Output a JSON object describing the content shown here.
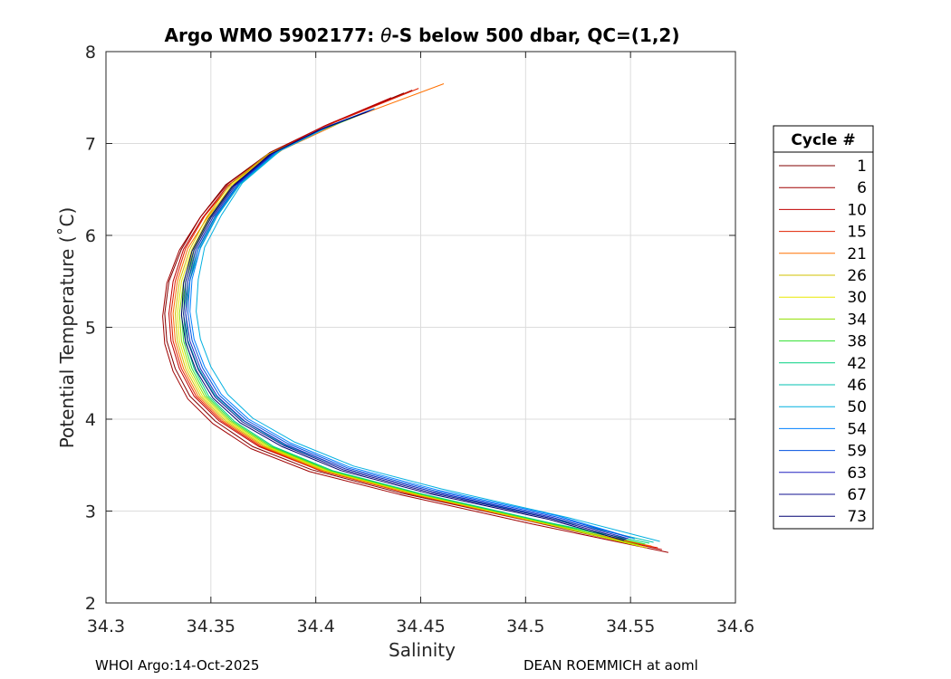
{
  "footer": {
    "left": "WHOI Argo:14-Oct-2025",
    "right": "DEAN ROEMMICH at aoml"
  },
  "chart_data": {
    "type": "line",
    "title": "Argo WMO 5902177: θ-S below 500 dbar,  QC=(1,2)",
    "title_prefix": "Argo WMO 5902177: ",
    "title_symbol": "θ",
    "title_suffix": "-S below 500 dbar,  QC=(1,2)",
    "xlabel": "Salinity",
    "ylabel": "Potential Temperature (˚C)",
    "xlim": [
      34.3,
      34.6
    ],
    "ylim": [
      2,
      8
    ],
    "xticks": [
      34.3,
      34.35,
      34.4,
      34.45,
      34.5,
      34.55,
      34.6
    ],
    "xtick_labels": [
      "34.3",
      "34.35",
      "34.4",
      "34.45",
      "34.5",
      "34.55",
      "34.6"
    ],
    "yticks": [
      2,
      3,
      4,
      5,
      6,
      7,
      8
    ],
    "ytick_labels": [
      "2",
      "3",
      "4",
      "5",
      "6",
      "7",
      "8"
    ],
    "grid": true,
    "legend_title": "Cycle #",
    "legend_position": "outside-right",
    "series": [
      {
        "name": "1",
        "color": "#800000",
        "x": [
          34.442,
          34.405,
          34.378,
          34.357,
          34.345,
          34.336,
          34.33,
          34.328,
          34.329,
          34.333,
          34.34,
          34.352,
          34.37,
          34.398,
          34.44,
          34.5,
          34.553
        ],
        "y": [
          7.55,
          7.2,
          6.9,
          6.55,
          6.2,
          5.85,
          5.5,
          5.15,
          4.85,
          4.55,
          4.25,
          3.98,
          3.7,
          3.45,
          3.2,
          2.9,
          2.63
        ]
      },
      {
        "name": "6",
        "color": "#a00000",
        "x": [
          34.446,
          34.407,
          34.379,
          34.358,
          34.345,
          34.335,
          34.329,
          34.327,
          34.328,
          34.332,
          34.339,
          34.351,
          34.369,
          34.397,
          34.44,
          34.503,
          34.568
        ],
        "y": [
          7.58,
          7.22,
          6.91,
          6.56,
          6.2,
          5.84,
          5.48,
          5.12,
          4.82,
          4.52,
          4.22,
          3.95,
          3.68,
          3.43,
          3.18,
          2.86,
          2.55
        ]
      },
      {
        "name": "10",
        "color": "#c00000",
        "x": [
          34.436,
          34.404,
          34.378,
          34.358,
          34.346,
          34.337,
          34.332,
          34.33,
          34.331,
          34.335,
          34.342,
          34.354,
          34.373,
          34.402,
          34.445,
          34.505,
          34.565
        ],
        "y": [
          7.5,
          7.19,
          6.89,
          6.54,
          6.19,
          5.85,
          5.5,
          5.15,
          4.85,
          4.55,
          4.25,
          3.98,
          3.7,
          3.44,
          3.19,
          2.88,
          2.58
        ]
      },
      {
        "name": "15",
        "color": "#e02000",
        "x": [
          34.449,
          34.409,
          34.381,
          34.36,
          34.347,
          34.338,
          34.333,
          34.331,
          34.332,
          34.336,
          34.343,
          34.355,
          34.374,
          34.402,
          34.444,
          34.505,
          34.563
        ],
        "y": [
          7.6,
          7.23,
          6.92,
          6.57,
          6.21,
          5.86,
          5.5,
          5.15,
          4.85,
          4.55,
          4.25,
          3.98,
          3.7,
          3.44,
          3.19,
          2.88,
          2.6
        ]
      },
      {
        "name": "21",
        "color": "#ff7000",
        "x": [
          34.461,
          34.414,
          34.384,
          34.362,
          34.349,
          34.339,
          34.334,
          34.332,
          34.333,
          34.337,
          34.344,
          34.356,
          34.375,
          34.403,
          34.445,
          34.505,
          34.56
        ],
        "y": [
          7.65,
          7.25,
          6.93,
          6.58,
          6.22,
          5.86,
          5.5,
          5.15,
          4.85,
          4.55,
          4.25,
          3.98,
          3.7,
          3.44,
          3.19,
          2.88,
          2.62
        ]
      },
      {
        "name": "26",
        "color": "#d0c000",
        "x": [
          34.422,
          34.4,
          34.377,
          34.359,
          34.348,
          34.34,
          34.335,
          34.333,
          34.334,
          34.338,
          34.345,
          34.357,
          34.376,
          34.404,
          34.446,
          34.506,
          34.558
        ],
        "y": [
          7.32,
          7.12,
          6.88,
          6.55,
          6.2,
          5.85,
          5.5,
          5.15,
          4.85,
          4.55,
          4.25,
          3.98,
          3.7,
          3.44,
          3.19,
          2.88,
          2.6
        ]
      },
      {
        "name": "30",
        "color": "#e8e800",
        "x": [
          34.423,
          34.401,
          34.378,
          34.36,
          34.349,
          34.341,
          34.336,
          34.334,
          34.335,
          34.339,
          34.346,
          34.358,
          34.377,
          34.405,
          34.447,
          34.507,
          34.556
        ],
        "y": [
          7.33,
          7.13,
          6.88,
          6.55,
          6.2,
          5.85,
          5.5,
          5.15,
          4.85,
          4.55,
          4.25,
          3.98,
          3.7,
          3.44,
          3.19,
          2.88,
          2.61
        ]
      },
      {
        "name": "34",
        "color": "#90e000",
        "x": [
          34.424,
          34.402,
          34.379,
          34.361,
          34.35,
          34.342,
          34.337,
          34.335,
          34.336,
          34.34,
          34.347,
          34.359,
          34.378,
          34.406,
          34.448,
          34.508,
          34.554
        ],
        "y": [
          7.34,
          7.14,
          6.89,
          6.55,
          6.2,
          5.85,
          5.5,
          5.15,
          4.85,
          4.55,
          4.25,
          3.98,
          3.7,
          3.44,
          3.19,
          2.88,
          2.63
        ]
      },
      {
        "name": "38",
        "color": "#30e030",
        "x": [
          34.425,
          34.403,
          34.38,
          34.362,
          34.351,
          34.343,
          34.338,
          34.336,
          34.337,
          34.341,
          34.348,
          34.36,
          34.379,
          34.407,
          34.449,
          34.509,
          34.557
        ],
        "y": [
          7.35,
          7.15,
          6.89,
          6.55,
          6.2,
          5.85,
          5.5,
          5.15,
          4.85,
          4.55,
          4.25,
          3.98,
          3.7,
          3.44,
          3.19,
          2.88,
          2.64
        ]
      },
      {
        "name": "42",
        "color": "#00d080",
        "x": [
          34.426,
          34.404,
          34.381,
          34.363,
          34.352,
          34.344,
          34.339,
          34.337,
          34.338,
          34.342,
          34.349,
          34.361,
          34.38,
          34.408,
          34.45,
          34.51,
          34.559
        ],
        "y": [
          7.36,
          7.16,
          6.9,
          6.55,
          6.2,
          5.85,
          5.5,
          5.15,
          4.85,
          4.55,
          4.25,
          3.98,
          3.7,
          3.44,
          3.19,
          2.88,
          2.65
        ]
      },
      {
        "name": "46",
        "color": "#00c0b0",
        "x": [
          34.427,
          34.405,
          34.382,
          34.364,
          34.353,
          34.345,
          34.34,
          34.338,
          34.339,
          34.344,
          34.352,
          34.365,
          34.385,
          34.414,
          34.456,
          34.516,
          34.561
        ],
        "y": [
          7.37,
          7.17,
          6.91,
          6.56,
          6.21,
          5.86,
          5.51,
          5.16,
          4.86,
          4.56,
          4.26,
          3.99,
          3.72,
          3.46,
          3.21,
          2.9,
          2.66
        ]
      },
      {
        "name": "50",
        "color": "#00b0e0",
        "x": [
          34.428,
          34.406,
          34.383,
          34.365,
          34.355,
          34.347,
          34.344,
          34.343,
          34.345,
          34.35,
          34.358,
          34.37,
          34.39,
          34.418,
          34.46,
          34.52,
          34.564
        ],
        "y": [
          7.38,
          7.18,
          6.92,
          6.57,
          6.22,
          5.87,
          5.52,
          5.17,
          4.87,
          4.57,
          4.27,
          4.01,
          3.75,
          3.49,
          3.24,
          2.93,
          2.67
        ]
      },
      {
        "name": "54",
        "color": "#0080ff",
        "x": [
          34.428,
          34.405,
          34.382,
          34.364,
          34.353,
          34.345,
          34.341,
          34.34,
          34.342,
          34.347,
          34.355,
          34.368,
          34.388,
          34.416,
          34.458,
          34.515,
          34.552
        ],
        "y": [
          7.38,
          7.18,
          6.92,
          6.57,
          6.22,
          5.87,
          5.52,
          5.17,
          4.87,
          4.57,
          4.27,
          4.0,
          3.74,
          3.48,
          3.23,
          2.95,
          2.7
        ]
      },
      {
        "name": "59",
        "color": "#0050e0",
        "x": [
          34.427,
          34.404,
          34.381,
          34.363,
          34.352,
          34.344,
          34.34,
          34.339,
          34.341,
          34.346,
          34.354,
          34.367,
          34.387,
          34.415,
          34.457,
          34.514,
          34.55
        ],
        "y": [
          7.37,
          7.17,
          6.91,
          6.56,
          6.21,
          5.86,
          5.51,
          5.16,
          4.86,
          4.56,
          4.26,
          3.99,
          3.73,
          3.47,
          3.22,
          2.94,
          2.71
        ]
      },
      {
        "name": "63",
        "color": "#2020c0",
        "x": [
          34.426,
          34.403,
          34.38,
          34.362,
          34.351,
          34.343,
          34.339,
          34.338,
          34.34,
          34.345,
          34.353,
          34.366,
          34.386,
          34.414,
          34.456,
          34.513,
          34.549
        ],
        "y": [
          7.36,
          7.16,
          6.9,
          6.55,
          6.2,
          5.85,
          5.5,
          5.15,
          4.85,
          4.55,
          4.25,
          3.98,
          3.72,
          3.46,
          3.21,
          2.93,
          2.7
        ]
      },
      {
        "name": "67",
        "color": "#101090",
        "x": [
          34.425,
          34.402,
          34.379,
          34.361,
          34.35,
          34.342,
          34.338,
          34.337,
          34.339,
          34.344,
          34.352,
          34.365,
          34.385,
          34.413,
          34.455,
          34.512,
          34.548
        ],
        "y": [
          7.35,
          7.15,
          6.89,
          6.54,
          6.19,
          5.84,
          5.49,
          5.14,
          4.84,
          4.54,
          4.24,
          3.97,
          3.71,
          3.45,
          3.2,
          2.92,
          2.69
        ]
      },
      {
        "name": "73",
        "color": "#000070",
        "x": [
          34.424,
          34.401,
          34.378,
          34.36,
          34.349,
          34.341,
          34.337,
          34.336,
          34.338,
          34.343,
          34.351,
          34.364,
          34.384,
          34.412,
          34.454,
          34.511,
          34.547
        ],
        "y": [
          7.34,
          7.14,
          6.88,
          6.53,
          6.18,
          5.83,
          5.48,
          5.13,
          4.83,
          4.53,
          4.23,
          3.96,
          3.7,
          3.44,
          3.19,
          2.91,
          2.68
        ]
      }
    ]
  }
}
